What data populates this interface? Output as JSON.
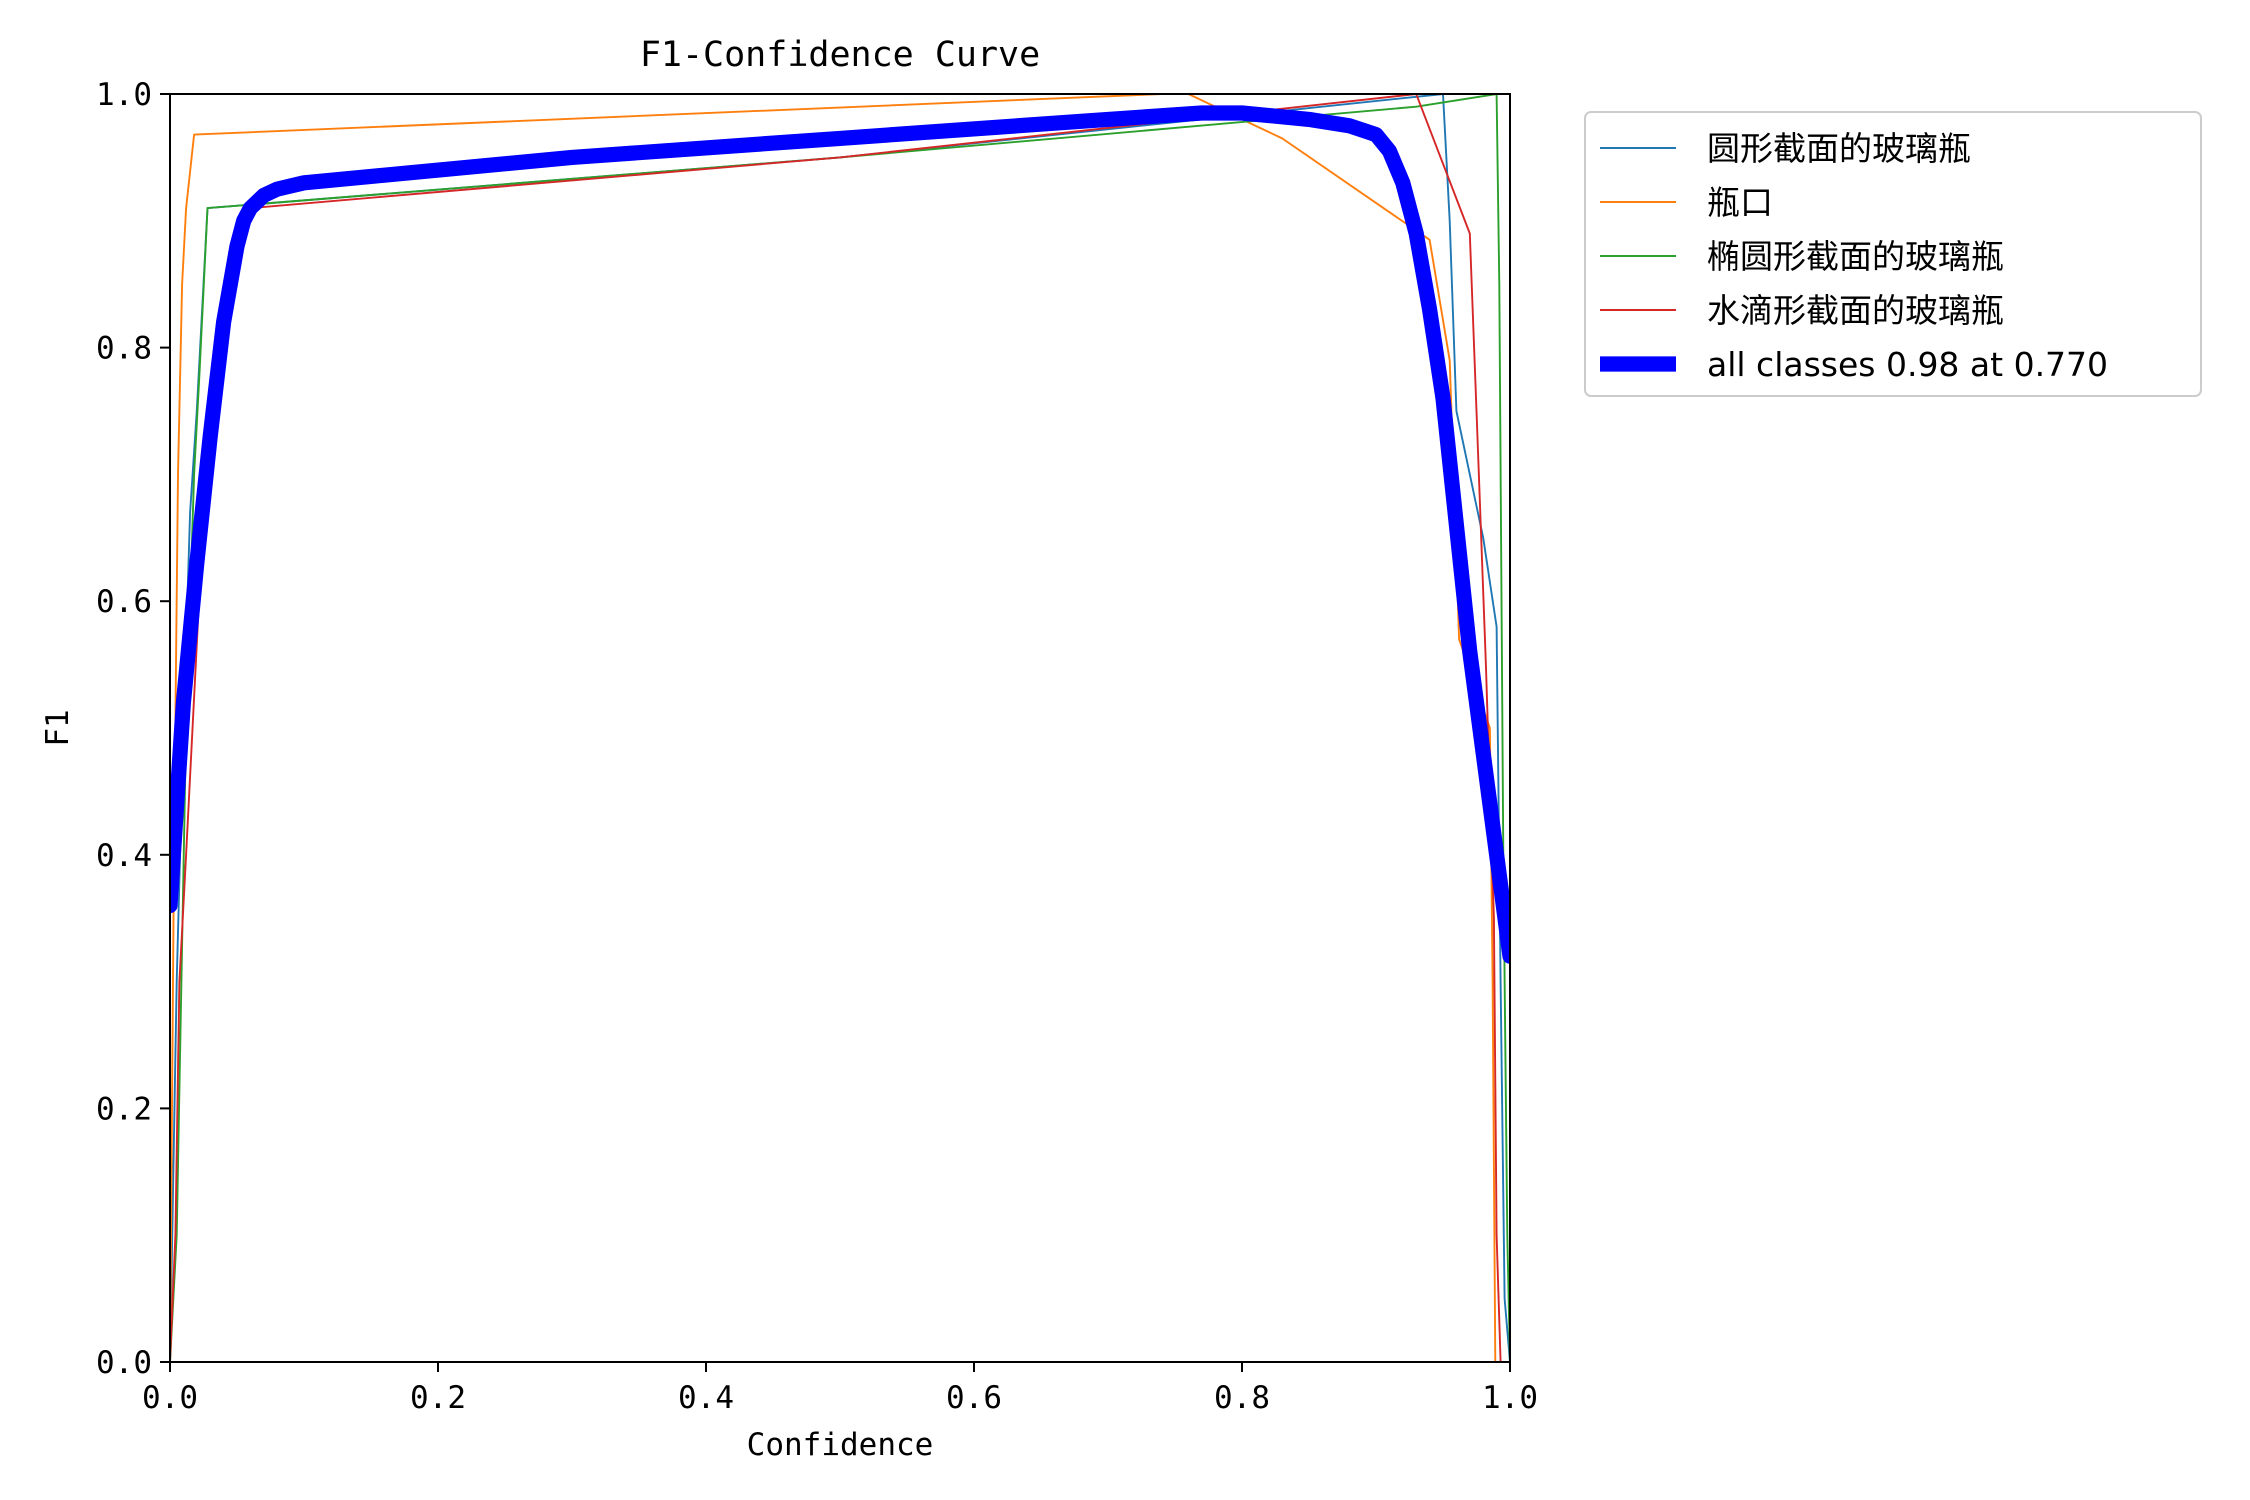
{
  "chart_data": {
    "type": "line",
    "title": "F1-Confidence Curve",
    "xlabel": "Confidence",
    "ylabel": "F1",
    "xlim": [
      0,
      1
    ],
    "ylim": [
      0,
      1
    ],
    "xticks": [
      "0.0",
      "0.2",
      "0.4",
      "0.6",
      "0.8",
      "1.0"
    ],
    "yticks": [
      "0.0",
      "0.2",
      "0.4",
      "0.6",
      "0.8",
      "1.0"
    ],
    "grid": false,
    "legend_position": "outside-top-right",
    "series": [
      {
        "name": "圆形截面的玻璃瓶",
        "color": "#1f77b4",
        "width": 1,
        "x": [
          0.0,
          0.005,
          0.01,
          0.015,
          0.02,
          0.025,
          0.028,
          0.5,
          0.95,
          0.955,
          0.96,
          0.98,
          0.99,
          0.993,
          0.996,
          1.0
        ],
        "y": [
          0.0,
          0.3,
          0.5,
          0.67,
          0.75,
          0.85,
          0.91,
          0.95,
          1.0,
          0.9,
          0.75,
          0.65,
          0.58,
          0.3,
          0.05,
          0.0
        ]
      },
      {
        "name": "瓶口",
        "color": "#ff7f0e",
        "width": 1,
        "x": [
          0.0,
          0.003,
          0.006,
          0.009,
          0.012,
          0.018,
          0.74,
          0.76,
          0.83,
          0.94,
          0.955,
          0.962,
          0.985,
          0.987,
          0.989,
          1.0
        ],
        "y": [
          0.0,
          0.4,
          0.7,
          0.85,
          0.91,
          0.968,
          1.0,
          1.0,
          0.965,
          0.885,
          0.79,
          0.57,
          0.5,
          0.3,
          0.0,
          0.0
        ]
      },
      {
        "name": "椭圆形截面的玻璃瓶",
        "color": "#2ca02c",
        "width": 1,
        "x": [
          0.0,
          0.005,
          0.012,
          0.018,
          0.022,
          0.028,
          0.5,
          0.93,
          0.99,
          0.992,
          0.995,
          0.998,
          1.0
        ],
        "y": [
          0.0,
          0.1,
          0.5,
          0.7,
          0.78,
          0.91,
          0.95,
          0.99,
          1.0,
          0.85,
          0.4,
          0.1,
          0.0
        ]
      },
      {
        "name": "水滴形截面的玻璃瓶",
        "color": "#d62728",
        "width": 1,
        "x": [
          0.0,
          0.004,
          0.007,
          0.012,
          0.025,
          0.04,
          0.06,
          0.5,
          0.93,
          0.97,
          0.975,
          0.982,
          0.988,
          0.99,
          0.993,
          0.996,
          1.0
        ],
        "y": [
          0.0,
          0.1,
          0.3,
          0.4,
          0.67,
          0.84,
          0.91,
          0.95,
          1.0,
          0.89,
          0.75,
          0.55,
          0.35,
          0.1,
          0.0,
          0.0,
          0.0
        ]
      },
      {
        "name": "all classes 0.98 at 0.770",
        "color": "#0000ff",
        "width": 8,
        "x": [
          0.0,
          0.01,
          0.02,
          0.03,
          0.04,
          0.05,
          0.055,
          0.06,
          0.065,
          0.07,
          0.08,
          0.1,
          0.15,
          0.3,
          0.5,
          0.7,
          0.77,
          0.8,
          0.85,
          0.88,
          0.9,
          0.91,
          0.92,
          0.93,
          0.94,
          0.95,
          0.96,
          0.97,
          0.98,
          0.99,
          1.0
        ],
        "y": [
          0.36,
          0.52,
          0.63,
          0.73,
          0.82,
          0.88,
          0.9,
          0.91,
          0.915,
          0.92,
          0.925,
          0.93,
          0.935,
          0.95,
          0.965,
          0.98,
          0.985,
          0.985,
          0.98,
          0.975,
          0.968,
          0.955,
          0.93,
          0.89,
          0.83,
          0.76,
          0.66,
          0.56,
          0.48,
          0.4,
          0.32
        ]
      }
    ]
  }
}
